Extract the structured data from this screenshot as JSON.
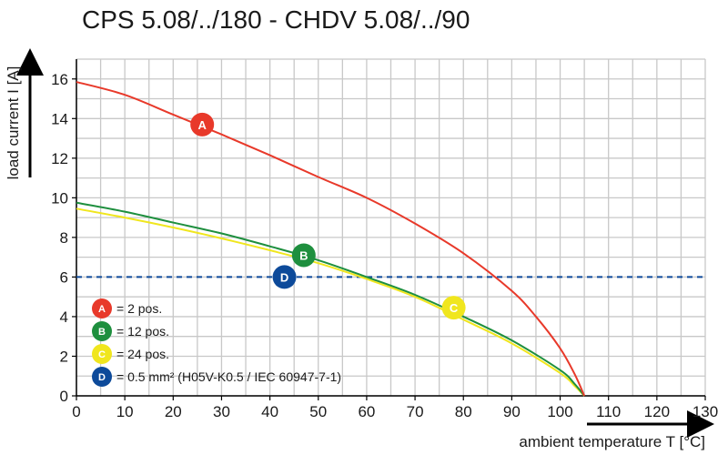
{
  "chart_data": {
    "type": "line",
    "title": "CPS 5.08/../180 - CHDV 5.08/../90",
    "xlabel": "ambient temperature T [°C]",
    "ylabel": "load current I [A]",
    "xlim": [
      0,
      130
    ],
    "ylim": [
      0,
      17
    ],
    "xticks": [
      0,
      10,
      20,
      30,
      40,
      50,
      60,
      70,
      80,
      90,
      100,
      110,
      120,
      130
    ],
    "yticks": [
      0,
      2,
      4,
      6,
      8,
      10,
      12,
      14,
      16
    ],
    "grid": true,
    "legend_position": "bottom-left",
    "series": [
      {
        "marker": "A",
        "color": "#e8392a",
        "legend": "= 2 pos.",
        "x": [
          0,
          10,
          20,
          30,
          40,
          50,
          60,
          70,
          80,
          90,
          95,
          100,
          103,
          105
        ],
        "y": [
          15.85,
          15.2,
          14.2,
          13.2,
          12.15,
          11.05,
          10.0,
          8.7,
          7.2,
          5.3,
          4.0,
          2.4,
          1.1,
          0
        ],
        "label_at": [
          26,
          13.7
        ]
      },
      {
        "marker": "B",
        "color": "#1e8f3e",
        "legend": "= 12 pos.",
        "x": [
          0,
          10,
          20,
          30,
          40,
          50,
          60,
          70,
          80,
          90,
          100,
          103,
          105
        ],
        "y": [
          9.75,
          9.3,
          8.75,
          8.2,
          7.55,
          6.85,
          6.0,
          5.1,
          4.0,
          2.8,
          1.3,
          0.6,
          0
        ],
        "label_at": [
          47,
          7.1
        ]
      },
      {
        "marker": "C",
        "color": "#f0e61e",
        "legend": "= 24 pos.",
        "x": [
          0,
          10,
          20,
          30,
          40,
          50,
          60,
          70,
          80,
          90,
          100,
          103,
          105
        ],
        "y": [
          9.45,
          9.0,
          8.5,
          7.95,
          7.35,
          6.7,
          5.9,
          5.0,
          3.85,
          2.65,
          1.15,
          0.5,
          0
        ],
        "label_at": [
          78,
          4.45
        ]
      },
      {
        "marker": "D",
        "color": "#0d4a9a",
        "legend": "= 0.5 mm² (H05V-K0.5 / IEC 60947-7-1)",
        "style": "dashed",
        "x": [
          0,
          130
        ],
        "y": [
          6,
          6
        ],
        "label_at": [
          43,
          6.0
        ]
      }
    ]
  }
}
